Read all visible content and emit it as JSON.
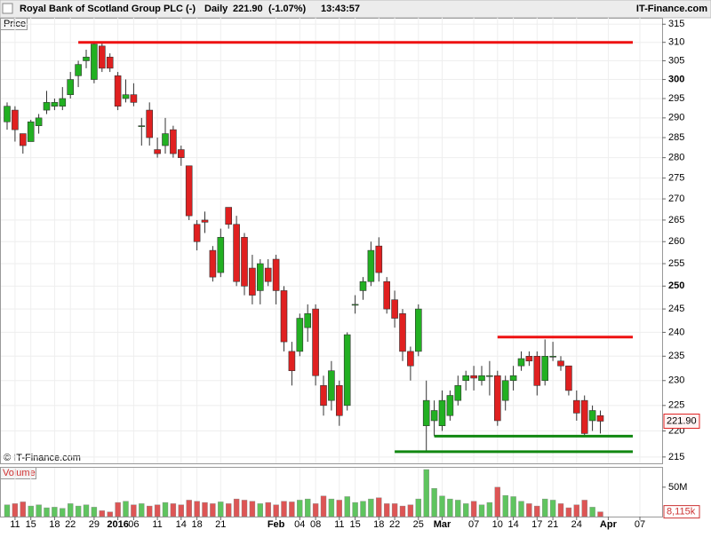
{
  "chart_data": {
    "type": "candlestick",
    "title": "Royal Bank of Scotland Group PLC (-)",
    "interval": "Daily",
    "last_price": {
      "value": 221.9,
      "label": "221.90"
    },
    "change": "(-1.07%)",
    "time": "13:43:57",
    "source": "IT-Finance.com",
    "copyright": "© IT-Finance.com",
    "y_label": "Price",
    "volume_label": "Volume",
    "log_scale": true,
    "grid": true,
    "up_color": "#22b022",
    "down_color": "#e02020",
    "ylim": [
      213.8,
      316.8
    ],
    "yticks": [
      215,
      220,
      225,
      230,
      235,
      240,
      245,
      250,
      255,
      260,
      265,
      270,
      275,
      280,
      285,
      290,
      295,
      300,
      305,
      310,
      315
    ],
    "y2lim": [
      0,
      83
    ],
    "y2ticks": [
      {
        "value": 50,
        "label": "50M"
      }
    ],
    "categories": [
      null,
      "11",
      null,
      "15",
      null,
      null,
      "18",
      null,
      "22",
      null,
      null,
      "29",
      null,
      null,
      "2016",
      null,
      "06",
      null,
      null,
      "11",
      null,
      null,
      "14",
      null,
      "18",
      null,
      null,
      "21",
      null,
      null,
      null,
      null,
      null,
      null,
      "Feb",
      null,
      null,
      "04",
      null,
      "08",
      null,
      null,
      "11",
      null,
      "15",
      null,
      null,
      "18",
      null,
      "22",
      null,
      null,
      "25",
      null,
      null,
      "Mar",
      null,
      null,
      null,
      "07",
      null,
      null,
      "10",
      null,
      "14",
      null,
      null,
      "17",
      null,
      "21",
      null,
      null,
      "24",
      null,
      null,
      null,
      "Apr",
      null,
      null,
      null,
      "07"
    ],
    "open": [
      289,
      292,
      286,
      284,
      288,
      292,
      293,
      293,
      296,
      301,
      305,
      300,
      309,
      306,
      301,
      295,
      296,
      288,
      292,
      282,
      283,
      287,
      282,
      278,
      264,
      265,
      258,
      253,
      268,
      264,
      261,
      254,
      249,
      254,
      256,
      249,
      236,
      236,
      241,
      245,
      229,
      226,
      229,
      225,
      246,
      249,
      251,
      259,
      251,
      247,
      244,
      236,
      236,
      221,
      222,
      221,
      223,
      226,
      230,
      231,
      230,
      231,
      231,
      226,
      230,
      233,
      235,
      235,
      230,
      235,
      234,
      233,
      226,
      226,
      222,
      223,
      null,
      null,
      null,
      null,
      null
    ],
    "high": [
      294,
      293,
      286,
      289.5,
      291,
      297,
      295,
      298,
      302,
      305,
      308,
      310,
      310,
      307,
      302,
      300,
      299,
      290,
      294,
      285,
      290,
      288,
      283,
      278,
      265,
      267,
      259,
      263,
      268,
      266,
      262,
      257,
      256,
      256,
      257,
      250,
      238,
      244,
      246,
      246,
      231,
      234,
      230,
      240,
      248,
      252,
      260,
      261,
      252,
      249,
      245,
      237,
      246,
      230,
      226,
      228,
      228,
      231,
      232,
      233,
      233,
      234,
      232,
      231,
      233,
      236,
      236,
      236,
      238.5,
      238,
      235,
      233,
      228,
      227,
      225,
      224,
      null,
      null,
      null,
      null,
      null
    ],
    "low": [
      287,
      284,
      281,
      284,
      286,
      291,
      292,
      292,
      295,
      298,
      303,
      299,
      302,
      302,
      292,
      294,
      293,
      283,
      283,
      280,
      281,
      280,
      278,
      265,
      258,
      262,
      251,
      252,
      263,
      250,
      248,
      246,
      246,
      250,
      246,
      236,
      229,
      235,
      238,
      229,
      223,
      224,
      221,
      224,
      244,
      247,
      250,
      251,
      244,
      241,
      234,
      230,
      235,
      216,
      219,
      220,
      222,
      225,
      228,
      228,
      229,
      227,
      221,
      224,
      228,
      232,
      233,
      227,
      229,
      234,
      232,
      227,
      222,
      219,
      220,
      219.5,
      null,
      null,
      null,
      null,
      null
    ],
    "close": [
      293,
      287,
      283,
      289,
      290,
      294,
      294,
      295,
      300,
      304,
      306,
      309.5,
      303,
      303,
      293,
      296,
      294,
      288,
      285,
      281,
      286,
      281,
      280,
      266,
      260,
      264.5,
      252,
      261,
      264,
      251,
      250,
      248,
      255,
      251,
      249,
      238,
      232,
      243,
      244,
      231,
      225,
      232,
      223,
      239.5,
      246,
      251,
      258,
      253,
      245,
      243,
      236,
      233,
      245,
      226,
      224,
      226,
      227,
      229,
      231,
      230.5,
      231,
      231,
      222,
      230,
      231,
      234.5,
      234,
      229,
      235,
      235,
      233,
      228,
      223.5,
      219.5,
      224,
      221.9,
      null,
      null,
      null,
      null,
      null
    ],
    "volume": [
      20,
      22,
      25,
      18,
      20,
      15,
      16,
      14,
      22,
      18,
      20,
      16,
      10,
      8,
      24,
      26,
      20,
      22,
      18,
      20,
      24,
      22,
      20,
      28,
      26,
      24,
      22,
      25,
      22,
      30,
      28,
      26,
      22,
      24,
      20,
      26,
      25,
      28,
      30,
      22,
      35,
      30,
      28,
      34,
      24,
      26,
      30,
      32,
      22,
      22,
      18,
      20,
      30,
      80,
      48,
      35,
      30,
      28,
      22,
      26,
      20,
      24,
      50,
      36,
      34,
      26,
      22,
      18,
      30,
      28,
      22,
      15,
      20,
      28,
      16,
      8.115,
      null,
      null,
      null,
      null,
      null
    ],
    "volume_value_labels": [
      null,
      null,
      null,
      null,
      null,
      null,
      null,
      null,
      null,
      null,
      null,
      null,
      null,
      null,
      null,
      null,
      null,
      null,
      null,
      null,
      null,
      null,
      null,
      null,
      null,
      null,
      null,
      null,
      null,
      null,
      null,
      null,
      null,
      null,
      null,
      null,
      null,
      null,
      null,
      null,
      null,
      null,
      null,
      null,
      null,
      null,
      null,
      null,
      null,
      null,
      null,
      null,
      null,
      null,
      null,
      null,
      null,
      null,
      null,
      null,
      null,
      null,
      null,
      null,
      null,
      null,
      null,
      null,
      null,
      null,
      null,
      null,
      null,
      null,
      null,
      "8,115k",
      null,
      null,
      null,
      null,
      null
    ],
    "lines": [
      {
        "value": 310,
        "start": 9,
        "color": "#ee1111"
      },
      {
        "value": 239,
        "start": 62,
        "color": "#ee1111"
      },
      {
        "value": 219,
        "start": 54,
        "color": "#118811"
      },
      {
        "value": 216,
        "start": 49,
        "color": "#118811"
      }
    ]
  }
}
